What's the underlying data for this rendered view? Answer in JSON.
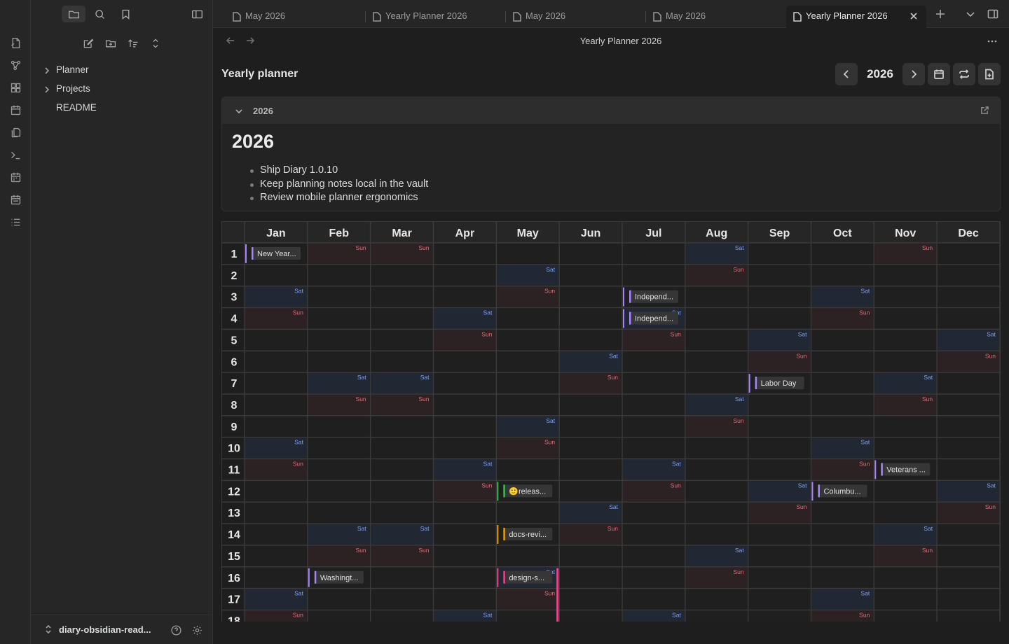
{
  "colors": {
    "accent": "#a882ff",
    "sat": "#7aa2f7",
    "sun": "#e06c75",
    "cell_sat": "#222833",
    "cell_sun": "#2c2224",
    "cell": "#1f1f1f"
  },
  "ribbon": {
    "icons": [
      "file-icon",
      "graph-icon",
      "canvas-icon",
      "calendar-icon",
      "pages-icon",
      "terminal-icon",
      "planner-icon",
      "daily-notes-icon",
      "list-icon"
    ]
  },
  "sidebar": {
    "top_icons": [
      "folder-icon",
      "search-icon",
      "bookmark-icon",
      "sidebar-toggle-icon"
    ],
    "tools": [
      "new-note-icon",
      "new-folder-icon",
      "sort-icon",
      "collapse-icon"
    ],
    "tree": [
      {
        "label": "Planner",
        "folder": true
      },
      {
        "label": "Projects",
        "folder": true
      },
      {
        "label": "README",
        "folder": false
      }
    ],
    "vault_name": "diary-obsidian-read..."
  },
  "tabs": [
    {
      "label": "May 2026",
      "active": false
    },
    {
      "label": "Yearly Planner 2026",
      "active": false
    },
    {
      "label": "May 2026",
      "active": false
    },
    {
      "label": "May 2026",
      "active": false
    },
    {
      "label": "Yearly Planner 2026",
      "active": true
    }
  ],
  "view": {
    "title": "Yearly Planner 2026"
  },
  "planner": {
    "heading": "Yearly planner",
    "year": "2026",
    "callout_label": "2026",
    "note_title": "2026",
    "bullets": [
      "Ship Diary 1.0.10",
      "Keep planning notes local in the vault",
      "Review mobile planner ergonomics"
    ]
  },
  "grid": {
    "months": [
      "Jan",
      "Feb",
      "Mar",
      "Apr",
      "May",
      "Jun",
      "Jul",
      "Aug",
      "Sep",
      "Oct",
      "Nov",
      "Dec"
    ],
    "first_weekday_2026": [
      4,
      0,
      0,
      3,
      5,
      1,
      3,
      6,
      2,
      4,
      0,
      2
    ],
    "days_visible": 18,
    "sat_label": "Sat",
    "sun_label": "Sun",
    "events": [
      {
        "month": 0,
        "day": 1,
        "label": "New Year...",
        "color": "#a882ff"
      },
      {
        "month": 1,
        "day": 16,
        "label": "Washingt...",
        "color": "#a882ff"
      },
      {
        "month": 4,
        "day": 12,
        "label": "🙂releas...",
        "color": "#3fb950"
      },
      {
        "month": 4,
        "day": 14,
        "label": "docs-revi...",
        "color": "#e3a008"
      },
      {
        "month": 4,
        "day": 16,
        "label": "design-s...",
        "color": "#e5488a"
      },
      {
        "month": 6,
        "day": 3,
        "label": "Independ...",
        "color": "#a882ff"
      },
      {
        "month": 6,
        "day": 4,
        "label": "Independ...",
        "color": "#a882ff"
      },
      {
        "month": 8,
        "day": 7,
        "label": "Labor Day",
        "color": "#a882ff"
      },
      {
        "month": 9,
        "day": 12,
        "label": "Columbu...",
        "color": "#a882ff"
      },
      {
        "month": 10,
        "day": 11,
        "label": "Veterans ...",
        "color": "#a882ff"
      }
    ],
    "range_bars": [
      {
        "month": 4,
        "from": 16,
        "to": 18,
        "color": "#e5488a"
      }
    ]
  }
}
